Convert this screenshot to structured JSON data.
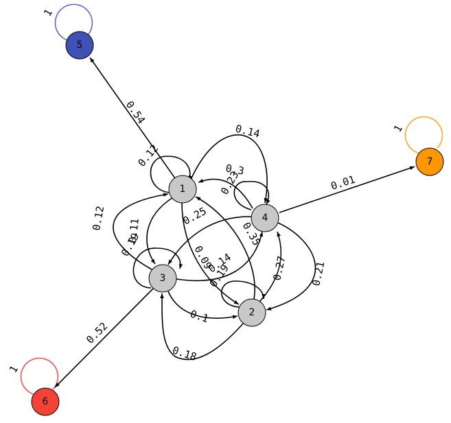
{
  "nodes": [
    {
      "id": "1",
      "color": "#c8c8c8"
    },
    {
      "id": "2",
      "color": "#c8c8c8"
    },
    {
      "id": "3",
      "color": "#c8c8c8"
    },
    {
      "id": "4",
      "color": "#c8c8c8"
    },
    {
      "id": "5",
      "color": "#3f51b5",
      "loop_color": "#5c6bc0"
    },
    {
      "id": "6",
      "color": "#f44336",
      "loop_color": "#ef5350"
    },
    {
      "id": "7",
      "color": "#ff9800",
      "loop_color": "#ffa726"
    }
  ],
  "edges": [
    {
      "from": "1",
      "to": "1",
      "label": "0.12"
    },
    {
      "from": "1",
      "to": "5",
      "label": "0.54"
    },
    {
      "from": "1",
      "to": "4",
      "label": "0.14"
    },
    {
      "from": "1",
      "to": "3",
      "label": "0.11"
    },
    {
      "from": "1",
      "to": "2",
      "label": "0.09"
    },
    {
      "from": "2",
      "to": "2",
      "label": "0.19"
    },
    {
      "from": "2",
      "to": "1",
      "label": "0.35"
    },
    {
      "from": "2",
      "to": "4",
      "label": "0.27"
    },
    {
      "from": "2",
      "to": "3",
      "label": "0.18"
    },
    {
      "from": "3",
      "to": "3",
      "label": "0.19"
    },
    {
      "from": "3",
      "to": "1",
      "label": "0.12"
    },
    {
      "from": "3",
      "to": "4",
      "label": "0.14"
    },
    {
      "from": "3",
      "to": "2",
      "label": "0.1"
    },
    {
      "from": "3",
      "to": "6",
      "label": "0.52"
    },
    {
      "from": "4",
      "to": "4",
      "label": "0.23"
    },
    {
      "from": "4",
      "to": "1",
      "label": "0.3"
    },
    {
      "from": "4",
      "to": "3",
      "label": "0.25"
    },
    {
      "from": "4",
      "to": "2",
      "label": "0.21"
    },
    {
      "from": "4",
      "to": "7",
      "label": "0.01"
    },
    {
      "from": "5",
      "to": "5",
      "label": "1"
    },
    {
      "from": "6",
      "to": "6",
      "label": "1"
    },
    {
      "from": "7",
      "to": "7",
      "label": "1"
    }
  ]
}
